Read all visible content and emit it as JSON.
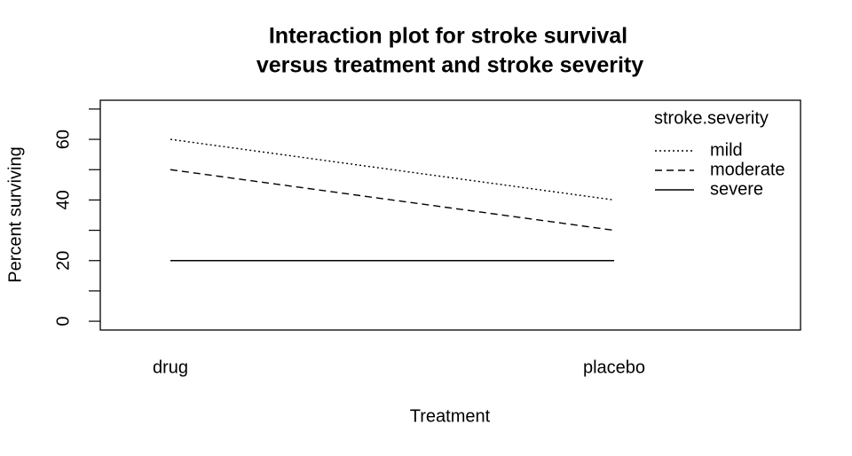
{
  "chart_data": {
    "type": "line",
    "title": [
      "Interaction plot for stroke survival",
      "versus treatment and stroke severity"
    ],
    "xlabel": "Treatment",
    "ylabel": "Percent surviving",
    "categories": [
      "drug",
      "placebo"
    ],
    "series": [
      {
        "name": "mild",
        "color": "#000000",
        "dash": "dotted",
        "values": [
          60,
          40
        ]
      },
      {
        "name": "moderate",
        "color": "#000000",
        "dash": "dashed",
        "values": [
          50,
          30
        ]
      },
      {
        "name": "severe",
        "color": "#000000",
        "dash": "solid",
        "values": [
          20,
          20
        ]
      }
    ],
    "legend_title": "stroke.severity",
    "legend": "top-right",
    "ylim": [
      -2.9,
      72.9
    ],
    "yticks": [
      0,
      20,
      40,
      60
    ],
    "minor_yticks": [
      10,
      30,
      50,
      70
    ]
  }
}
